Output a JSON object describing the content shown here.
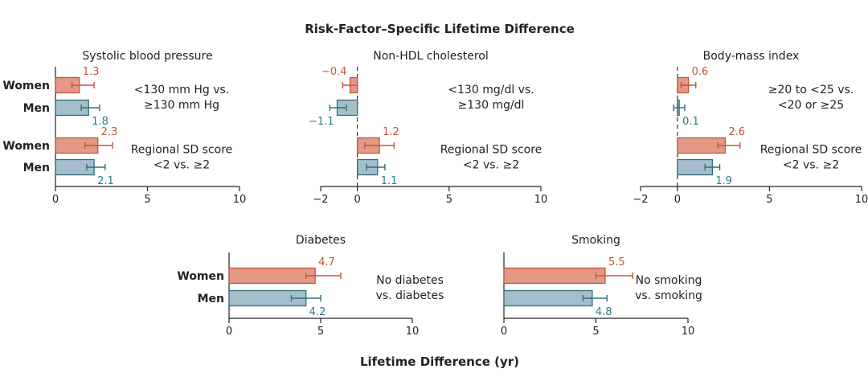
{
  "colors": {
    "women_fill": "#E29A86",
    "women_stroke": "#C4553A",
    "men_fill": "#A4BFCB",
    "men_stroke": "#2E6E79",
    "women_label": "#C4553A",
    "men_label": "#2E7C85",
    "axis": "#222222"
  },
  "chart_data": {
    "type": "bar",
    "title": "Risk-Factor–Specific Lifetime Difference",
    "xlabel": "Lifetime Difference (yr)",
    "orientation": "horizontal",
    "error_bars": true,
    "legend": "none",
    "grid": false,
    "panels": [
      {
        "title": "Systolic blood pressure",
        "xlim": [
          0,
          10
        ],
        "xticks": [
          "0",
          "5",
          "10"
        ],
        "zero_line": false,
        "groups": [
          {
            "note": [
              "<130 mm Hg vs.",
              "≥130 mm Hg"
            ],
            "bars": [
              {
                "name": "Women",
                "value": 1.3,
                "label": "1.3",
                "ci": [
                  0.9,
                  2.1
                ]
              },
              {
                "name": "Men",
                "value": 1.8,
                "label": "1.8",
                "ci": [
                  1.4,
                  2.4
                ]
              }
            ]
          },
          {
            "note": [
              "Regional SD score",
              "<2 vs. ≥2"
            ],
            "bars": [
              {
                "name": "Women",
                "value": 2.3,
                "label": "2.3",
                "ci": [
                  1.6,
                  3.1
                ]
              },
              {
                "name": "Men",
                "value": 2.1,
                "label": "2.1",
                "ci": [
                  1.7,
                  2.7
                ]
              }
            ]
          }
        ]
      },
      {
        "title": "Non-HDL cholesterol",
        "xlim": [
          -2,
          10
        ],
        "xticks": [
          "−2",
          "0",
          "5",
          "10"
        ],
        "zero_line": true,
        "groups": [
          {
            "note": [
              "<130 mg/dl vs.",
              "≥130 mg/dl"
            ],
            "bars": [
              {
                "name": "Women",
                "value": -0.4,
                "label": "−0.4",
                "ci": [
                  -0.8,
                  0.0
                ]
              },
              {
                "name": "Men",
                "value": -1.1,
                "label": "−1.1",
                "ci": [
                  -1.5,
                  -0.6
                ]
              }
            ]
          },
          {
            "note": [
              "Regional SD score",
              "<2 vs. ≥2"
            ],
            "bars": [
              {
                "name": "Women",
                "value": 1.2,
                "label": "1.2",
                "ci": [
                  0.4,
                  2.0
                ]
              },
              {
                "name": "Men",
                "value": 1.1,
                "label": "1.1",
                "ci": [
                  0.5,
                  1.5
                ]
              }
            ]
          }
        ]
      },
      {
        "title": "Body-mass index",
        "xlim": [
          -2,
          10
        ],
        "xticks": [
          "−2",
          "0",
          "5",
          "10"
        ],
        "zero_line": true,
        "groups": [
          {
            "note": [
              "≥20 to <25 vs.",
              "<20 or ≥25"
            ],
            "bars": [
              {
                "name": "Women",
                "value": 0.6,
                "label": "0.6",
                "ci": [
                  0.2,
                  1.0
                ]
              },
              {
                "name": "Men",
                "value": 0.1,
                "label": "0.1",
                "ci": [
                  -0.2,
                  0.4
                ]
              }
            ]
          },
          {
            "note": [
              "Regional SD score",
              "<2 vs. ≥2"
            ],
            "bars": [
              {
                "name": "Women",
                "value": 2.6,
                "label": "2.6",
                "ci": [
                  2.2,
                  3.4
                ]
              },
              {
                "name": "Men",
                "value": 1.9,
                "label": "1.9",
                "ci": [
                  1.5,
                  2.3
                ]
              }
            ]
          }
        ]
      },
      {
        "title": "Diabetes",
        "xlim": [
          0,
          10
        ],
        "xticks": [
          "0",
          "5",
          "10"
        ],
        "zero_line": false,
        "groups": [
          {
            "note": [
              "No diabetes",
              "vs. diabetes"
            ],
            "bars": [
              {
                "name": "Women",
                "value": 4.7,
                "label": "4.7",
                "ci": [
                  4.2,
                  6.1
                ]
              },
              {
                "name": "Men",
                "value": 4.2,
                "label": "4.2",
                "ci": [
                  3.4,
                  5.0
                ]
              }
            ]
          }
        ]
      },
      {
        "title": "Smoking",
        "xlim": [
          0,
          10
        ],
        "xticks": [
          "0",
          "5",
          "10"
        ],
        "zero_line": false,
        "groups": [
          {
            "note": [
              "No smoking",
              "vs. smoking"
            ],
            "bars": [
              {
                "name": "Women",
                "value": 5.5,
                "label": "5.5",
                "ci": [
                  5.0,
                  7.0
                ]
              },
              {
                "name": "Men",
                "value": 4.8,
                "label": "4.8",
                "ci": [
                  4.3,
                  5.6
                ]
              }
            ]
          }
        ]
      }
    ]
  }
}
